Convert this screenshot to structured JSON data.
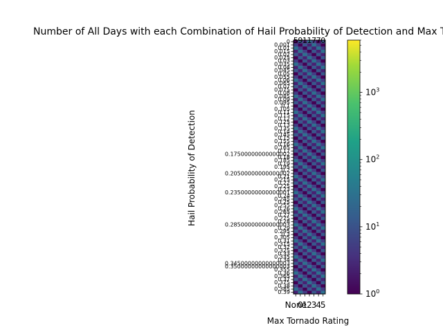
{
  "chart_data": {
    "type": "heatmap",
    "title": "Number of All Days with each Combination of Hail Probability of Detection and Max Tornado Rating",
    "xlabel": "Max Tornado Rating",
    "ylabel": "Hail Probability of Detection",
    "x_categories": [
      "None",
      "0",
      "1",
      "2",
      "3",
      "4",
      "5"
    ],
    "y_tick_labels": [
      "0",
      "0.001",
      "0.01",
      "0.015",
      "0.02",
      "0.025",
      "0.03",
      "0.035",
      "0.04",
      "0.045",
      "0.05",
      "0.055",
      "0.06",
      "0.065",
      "0.07",
      "0.075",
      "0.08",
      "0.085",
      "0.09",
      "0.095",
      "0.1",
      "0.105",
      "0.11",
      "0.115",
      "0.12",
      "0.125",
      "0.13",
      "0.135",
      "0.14",
      "0.145",
      "0.15",
      "0.155",
      "0.16",
      "0.165",
      "0.17",
      "0.17500000000000002",
      "0.18",
      "0.185",
      "0.19",
      "0.195",
      "0.2",
      "0.20500000000000002",
      "0.21",
      "0.215",
      "0.22",
      "0.225",
      "0.23",
      "0.23500000000000001",
      "0.24",
      "0.245",
      "0.25",
      "0.255",
      "0.26",
      "0.265",
      "0.27",
      "0.275",
      "0.28",
      "0.28500000000000003",
      "0.29",
      "0.295",
      "0.3",
      "0.305",
      "0.31",
      "0.315",
      "0.32",
      "0.325",
      "0.33",
      "0.335",
      "0.34",
      "0.34500000000000003",
      "0.35000000000000003",
      "0.355",
      "0.36",
      "0.365",
      "0.37",
      "0.375",
      "0.38",
      "0.385",
      "0.39"
    ],
    "top_cell_values": [
      "5",
      "9",
      "1",
      "1",
      "7",
      "7",
      "0"
    ],
    "colorbar": {
      "scale": "log",
      "colormap": "viridis",
      "range": [
        1,
        6000
      ],
      "tick_labels": [
        "10^0",
        "10^1",
        "10^2",
        "10^3"
      ]
    },
    "colors": {
      "low": "#440154",
      "mid": "#21918c",
      "high": "#fde725"
    },
    "grid": false,
    "annotations": "each cell annotated with its day count"
  }
}
